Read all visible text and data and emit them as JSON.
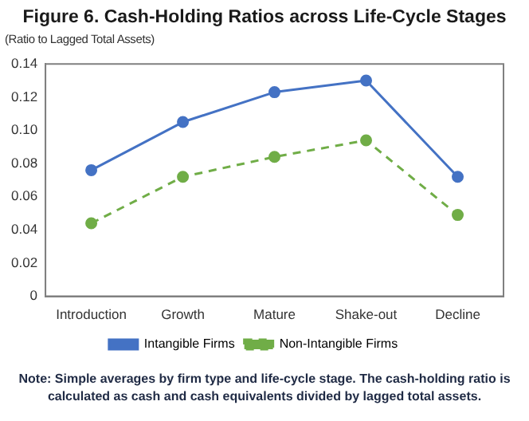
{
  "chart_data": {
    "type": "line",
    "title": "Figure 6. Cash-Holding Ratios across Life-Cycle Stages",
    "ylabel": "(Ratio to Lagged Total Assets)",
    "categories": [
      "Introduction",
      "Growth",
      "Mature",
      "Shake-out",
      "Decline"
    ],
    "series": [
      {
        "name": "Intangible Firms",
        "color": "#4472c4",
        "line_style": "solid",
        "values": [
          0.076,
          0.105,
          0.123,
          0.13,
          0.072
        ]
      },
      {
        "name": "Non-Intangible Firms",
        "color": "#70ad47",
        "line_style": "dashed",
        "values": [
          0.044,
          0.072,
          0.084,
          0.094,
          0.049
        ]
      }
    ],
    "ylim": [
      0,
      0.14
    ],
    "yticks": [
      {
        "value": 0,
        "label": "0"
      },
      0.02,
      0.04,
      0.06,
      0.08,
      {
        "value": 0.1,
        "label": "0.10"
      },
      0.12,
      0.14
    ],
    "grid": false,
    "legend": "bottom",
    "marker": "circle",
    "annotations": [
      "Note: Simple averages by firm type and life-cycle stage. The cash-holding ratio is calculated as cash and cash equivalents divided by lagged total assets."
    ]
  }
}
